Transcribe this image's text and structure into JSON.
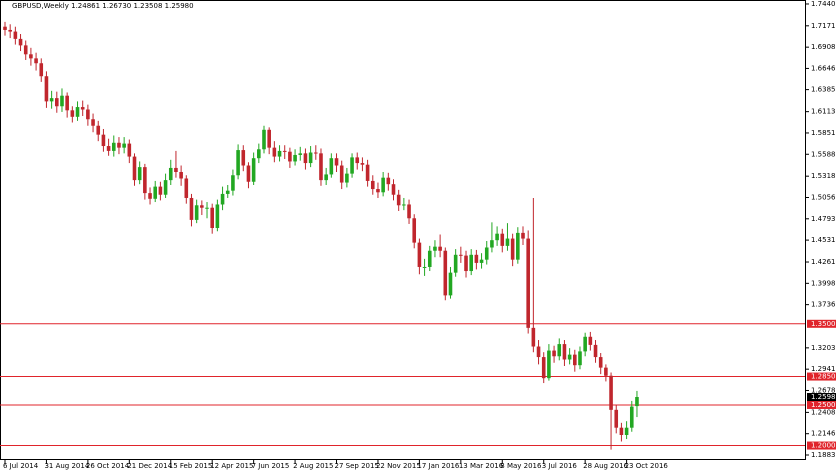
{
  "chart_data": {
    "type": "candlestick",
    "title": "GBPUSD,Weekly  1.24861 1.26730 1.23508 1.25980",
    "up_color": "#22a722",
    "down_color": "#c0262d",
    "categories": [
      "6 Jul 2014",
      null,
      null,
      null,
      null,
      null,
      null,
      null,
      "31 Aug 2014",
      null,
      null,
      null,
      null,
      null,
      null,
      null,
      "26 Oct 2014",
      null,
      null,
      null,
      null,
      null,
      null,
      null,
      "21 Dec 2014",
      null,
      null,
      null,
      null,
      null,
      null,
      null,
      "15 Feb 2015",
      null,
      null,
      null,
      null,
      null,
      null,
      null,
      "12 Apr 2015",
      null,
      null,
      null,
      null,
      null,
      null,
      null,
      "7 Jun 2015",
      null,
      null,
      null,
      null,
      null,
      null,
      null,
      "2 Aug 2015",
      null,
      null,
      null,
      null,
      null,
      null,
      null,
      "27 Sep 2015",
      null,
      null,
      null,
      null,
      null,
      null,
      null,
      "22 Nov 2015",
      null,
      null,
      null,
      null,
      null,
      null,
      null,
      "17 Jan 2016",
      null,
      null,
      null,
      null,
      null,
      null,
      null,
      "13 Mar 2016",
      null,
      null,
      null,
      null,
      null,
      null,
      null,
      "8 May 2016",
      null,
      null,
      null,
      null,
      null,
      null,
      null,
      "3 Jul 2016",
      null,
      null,
      null,
      null,
      null,
      null,
      null,
      "28 Aug 2016",
      null,
      null,
      null,
      null,
      null,
      null,
      null,
      "23 Oct 2016",
      null,
      null
    ],
    "open": [
      1.716,
      1.712,
      1.71,
      1.701,
      1.693,
      1.682,
      1.677,
      1.671,
      1.655,
      1.624,
      1.628,
      1.618,
      1.631,
      1.613,
      1.605,
      1.617,
      1.614,
      1.602,
      1.594,
      1.583,
      1.569,
      1.563,
      1.573,
      1.567,
      1.572,
      1.556,
      1.527,
      1.543,
      1.511,
      1.504,
      1.519,
      1.509,
      1.527,
      1.542,
      1.537,
      1.529,
      1.505,
      1.478,
      1.496,
      1.493,
      1.493,
      1.468,
      1.497,
      1.51,
      1.514,
      1.533,
      1.564,
      1.545,
      1.525,
      1.554,
      1.565,
      1.589,
      1.567,
      1.556,
      1.563,
      1.562,
      1.55,
      1.558,
      1.56,
      1.548,
      1.561,
      1.56,
      1.527,
      1.534,
      1.554,
      1.545,
      1.524,
      1.535,
      1.555,
      1.548,
      1.546,
      1.526,
      1.516,
      1.512,
      1.53,
      1.522,
      1.509,
      1.496,
      1.497,
      1.48,
      1.45,
      1.42,
      1.42,
      1.44,
      1.445,
      1.44,
      1.385,
      1.413,
      1.435,
      1.434,
      1.415,
      1.435,
      1.425,
      1.429,
      1.444,
      1.453,
      1.461,
      1.446,
      1.455,
      1.429,
      1.462,
      1.455,
      1.345,
      1.322,
      1.309,
      1.283,
      1.317,
      1.31,
      1.325,
      1.306,
      1.312,
      1.299,
      1.316,
      1.334,
      1.324,
      1.309,
      1.296,
      1.286,
      1.244,
      1.222,
      1.213,
      1.222,
      1.24861
    ],
    "high": [
      1.722,
      1.719,
      1.716,
      1.707,
      1.699,
      1.69,
      1.684,
      1.677,
      1.661,
      1.637,
      1.636,
      1.64,
      1.635,
      1.618,
      1.624,
      1.625,
      1.62,
      1.609,
      1.6,
      1.59,
      1.578,
      1.582,
      1.58,
      1.58,
      1.577,
      1.56,
      1.55,
      1.547,
      1.518,
      1.526,
      1.525,
      1.535,
      1.552,
      1.563,
      1.545,
      1.533,
      1.51,
      1.503,
      1.502,
      1.5,
      1.498,
      1.503,
      1.519,
      1.521,
      1.54,
      1.571,
      1.57,
      1.549,
      1.561,
      1.572,
      1.594,
      1.592,
      1.575,
      1.57,
      1.57,
      1.567,
      1.565,
      1.568,
      1.566,
      1.569,
      1.57,
      1.566,
      1.542,
      1.56,
      1.56,
      1.551,
      1.542,
      1.56,
      1.561,
      1.555,
      1.552,
      1.533,
      1.524,
      1.537,
      1.536,
      1.528,
      1.515,
      1.505,
      1.503,
      1.485,
      1.455,
      1.43,
      1.446,
      1.453,
      1.46,
      1.444,
      1.42,
      1.442,
      1.445,
      1.44,
      1.442,
      1.441,
      1.437,
      1.452,
      1.475,
      1.47,
      1.467,
      1.474,
      1.461,
      1.469,
      1.47,
      1.465,
      1.505,
      1.33,
      1.315,
      1.325,
      1.323,
      1.332,
      1.33,
      1.32,
      1.318,
      1.322,
      1.339,
      1.34,
      1.33,
      1.314,
      1.3,
      1.29,
      1.25,
      1.228,
      1.23,
      1.255,
      1.2673
    ],
    "low": [
      1.705,
      1.702,
      1.694,
      1.686,
      1.675,
      1.668,
      1.662,
      1.648,
      1.616,
      1.615,
      1.61,
      1.611,
      1.604,
      1.598,
      1.6,
      1.606,
      1.594,
      1.586,
      1.575,
      1.562,
      1.557,
      1.556,
      1.559,
      1.56,
      1.548,
      1.52,
      1.522,
      1.503,
      1.497,
      1.5,
      1.502,
      1.505,
      1.521,
      1.53,
      1.52,
      1.498,
      1.47,
      1.474,
      1.484,
      1.48,
      1.461,
      1.464,
      1.49,
      1.505,
      1.508,
      1.528,
      1.538,
      1.517,
      1.521,
      1.548,
      1.56,
      1.559,
      1.549,
      1.55,
      1.553,
      1.542,
      1.545,
      1.551,
      1.54,
      1.543,
      1.552,
      1.52,
      1.521,
      1.53,
      1.537,
      1.516,
      1.518,
      1.53,
      1.54,
      1.538,
      1.519,
      1.509,
      1.505,
      1.507,
      1.514,
      1.502,
      1.489,
      1.49,
      1.473,
      1.443,
      1.411,
      1.409,
      1.415,
      1.432,
      1.432,
      1.379,
      1.381,
      1.408,
      1.425,
      1.407,
      1.41,
      1.417,
      1.418,
      1.423,
      1.438,
      1.446,
      1.438,
      1.44,
      1.421,
      1.424,
      1.447,
      1.338,
      1.315,
      1.3,
      1.277,
      1.28,
      1.302,
      1.305,
      1.298,
      1.3,
      1.291,
      1.294,
      1.31,
      1.317,
      1.302,
      1.288,
      1.279,
      1.195,
      1.215,
      1.205,
      1.208,
      1.217,
      1.23508
    ],
    "close": [
      1.712,
      1.71,
      1.701,
      1.693,
      1.682,
      1.677,
      1.671,
      1.655,
      1.624,
      1.628,
      1.618,
      1.631,
      1.613,
      1.605,
      1.617,
      1.614,
      1.602,
      1.594,
      1.583,
      1.569,
      1.563,
      1.573,
      1.567,
      1.572,
      1.556,
      1.527,
      1.543,
      1.511,
      1.504,
      1.519,
      1.509,
      1.527,
      1.542,
      1.537,
      1.529,
      1.505,
      1.478,
      1.496,
      1.493,
      1.493,
      1.468,
      1.497,
      1.51,
      1.514,
      1.533,
      1.564,
      1.545,
      1.525,
      1.554,
      1.565,
      1.589,
      1.567,
      1.556,
      1.563,
      1.562,
      1.55,
      1.558,
      1.56,
      1.548,
      1.561,
      1.56,
      1.527,
      1.534,
      1.554,
      1.545,
      1.524,
      1.535,
      1.555,
      1.548,
      1.546,
      1.526,
      1.516,
      1.512,
      1.53,
      1.522,
      1.509,
      1.496,
      1.497,
      1.48,
      1.45,
      1.42,
      1.42,
      1.44,
      1.445,
      1.44,
      1.385,
      1.413,
      1.435,
      1.434,
      1.415,
      1.435,
      1.425,
      1.429,
      1.444,
      1.453,
      1.461,
      1.446,
      1.455,
      1.429,
      1.462,
      1.455,
      1.345,
      1.322,
      1.309,
      1.283,
      1.317,
      1.31,
      1.325,
      1.306,
      1.312,
      1.299,
      1.316,
      1.334,
      1.324,
      1.309,
      1.296,
      1.286,
      1.244,
      1.222,
      1.213,
      1.222,
      1.248,
      1.2598
    ],
    "ylim": [
      1.1822,
      1.7489
    ],
    "yticks": [
      {
        "value": 1.744,
        "label": "1.74400"
      },
      {
        "value": 1.7171,
        "label": "1.71710"
      },
      {
        "value": 1.6908,
        "label": "1.69080"
      },
      {
        "value": 1.6646,
        "label": "1.66460"
      },
      {
        "value": 1.6385,
        "label": "1.63850"
      },
      {
        "value": 1.61135,
        "label": "1.61135"
      },
      {
        "value": 1.5851,
        "label": "1.58510"
      },
      {
        "value": 1.55885,
        "label": "1.55885"
      },
      {
        "value": 1.53185,
        "label": "1.53185"
      },
      {
        "value": 1.5056,
        "label": "1.50560"
      },
      {
        "value": 1.47935,
        "label": "1.47935"
      },
      {
        "value": 1.4531,
        "label": "1.45310"
      },
      {
        "value": 1.4261,
        "label": "1.42610"
      },
      {
        "value": 1.39985,
        "label": "1.39985"
      },
      {
        "value": 1.3736,
        "label": "1.37360"
      },
      {
        "value": 1.32035,
        "label": "1.32035"
      },
      {
        "value": 1.2941,
        "label": "1.29410"
      },
      {
        "value": 1.26785,
        "label": "1.26785"
      },
      {
        "value": 1.24085,
        "label": "1.24085"
      },
      {
        "value": 1.2146,
        "label": "1.21460"
      },
      {
        "value": 1.18835,
        "label": "1.18835"
      }
    ],
    "levels": [
      {
        "value": 1.35,
        "label": "1.35000"
      },
      {
        "value": 1.285,
        "label": "1.28500"
      },
      {
        "value": 1.25,
        "label": "1.25000"
      },
      {
        "value": 1.2,
        "label": "1.20000"
      }
    ],
    "level_color": "#e0242b",
    "last_price": {
      "value": 1.2598,
      "label": "1.25980"
    }
  }
}
